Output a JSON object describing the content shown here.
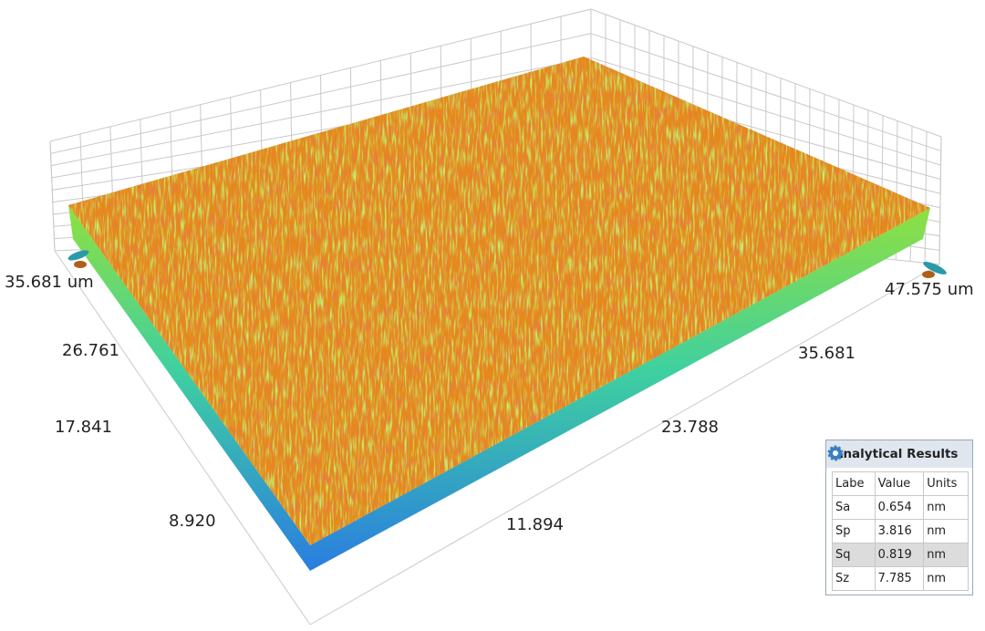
{
  "left_axis": {
    "labels": [
      "35.681 um",
      "26.761",
      "17.841",
      "8.920"
    ]
  },
  "right_axis": {
    "labels": [
      "47.575 um",
      "35.681",
      "23.788",
      "11.894"
    ]
  },
  "results": {
    "title": "Analytical Results",
    "columns": [
      "Labe",
      "Value",
      "Units"
    ],
    "rows": [
      [
        "Sa",
        "0.654",
        "nm"
      ],
      [
        "Sp",
        "3.816",
        "nm"
      ],
      [
        "Sq",
        "0.819",
        "nm"
      ],
      [
        "Sz",
        "7.785",
        "nm"
      ]
    ]
  }
}
